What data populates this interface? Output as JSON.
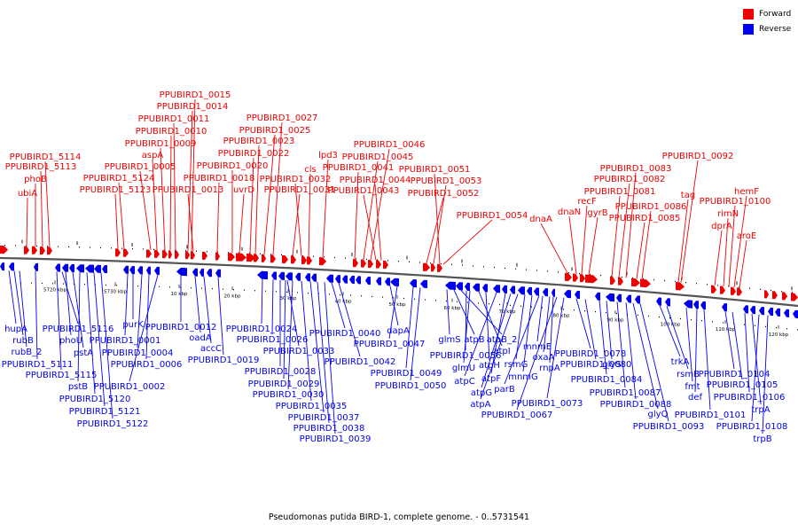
{
  "legend": {
    "forward_label": "Forward",
    "reverse_label": "Reverse",
    "forward_color": "#ee0000",
    "reverse_color": "#0000ee"
  },
  "caption": "Pseudomonas putida BIRD-1, complete genome. - 0..5731541",
  "scale_labels": [
    "5720 kbp",
    "5730 kbp",
    "10 kbp",
    "20 kbp",
    "30 kbp",
    "40 kbp",
    "50 kbp",
    "60 kbp",
    "70 kbp",
    "80 kbp",
    "90 kbp",
    "100 kbp",
    "110 kbp",
    "120 kbp"
  ],
  "forward_genes": [
    "ubiA",
    "phoB",
    "PPUBIRD1_5113",
    "PPUBIRD1_5114",
    "PPUBIRD1_5123",
    "PPUBIRD1_5124",
    "PPUBIRD1_0005",
    "aspA",
    "PPUBIRD1_0009",
    "PPUBIRD1_0010",
    "PPUBIRD1_0011",
    "PPUBIRD1_0014",
    "PPUBIRD1_0015",
    "PPUBIRD1_0013",
    "PPUBIRD1_0018",
    "PPUBIRD1_0020",
    "uvrD",
    "PPUBIRD1_0022",
    "PPUBIRD1_0023",
    "PPUBIRD1_0025",
    "PPUBIRD1_0027",
    "PPUBIRD1_0031",
    "PPUBIRD1_0032",
    "cls",
    "lpd3",
    "PPUBIRD1_0041",
    "PPUBIRD1_0045",
    "PPUBIRD1_0046",
    "PPUBIRD1_0043",
    "PPUBIRD1_0044",
    "PPUBIRD1_0052",
    "PPUBIRD1_0053",
    "PPUBIRD1_0051",
    "PPUBIRD1_0054",
    "dnaA",
    "dnaN",
    "recF",
    "gyrB",
    "PPUBIRD1_0081",
    "PPUBIRD1_0082",
    "PPUBIRD1_0083",
    "PPUBIRD1_0085",
    "PPUBIRD1_0086",
    "tag",
    "PPUBIRD1_0092",
    "dprA",
    "rimN",
    "PPUBIRD1_0100",
    "hemF",
    "aroE"
  ],
  "reverse_genes": [
    "hupA",
    "rubB",
    "rubB_2",
    "PPUBIRD1_5111",
    "PPUBIRD1_5115",
    "PPUBIRD1_5116",
    "phoU",
    "pstA",
    "pstB",
    "PPUBIRD1_5120",
    "PPUBIRD1_5121",
    "PPUBIRD1_5122",
    "PPUBIRD1_0001",
    "purK",
    "PPUBIRD1_0004",
    "PPUBIRD1_0006",
    "PPUBIRD1_0002",
    "PPUBIRD1_0012",
    "oadA",
    "accC",
    "PPUBIRD1_0019",
    "PPUBIRD1_0024",
    "PPUBIRD1_0026",
    "PPUBIRD1_0033",
    "PPUBIRD1_0028",
    "PPUBIRD1_0029",
    "PPUBIRD1_0030",
    "PPUBIRD1_0035",
    "PPUBIRD1_0037",
    "PPUBIRD1_0038",
    "PPUBIRD1_0039",
    "PPUBIRD1_0040",
    "PPUBIRD1_0042",
    "dapA",
    "PPUBIRD1_0047",
    "PPUBIRD1_0049",
    "PPUBIRD1_0050",
    "glmS",
    "atpB",
    "atpB_2",
    "PPUBIRD1_0056",
    "atpI",
    "glmU",
    "atpH",
    "atpC",
    "atpF",
    "atpG",
    "atpA",
    "rsmG",
    "mnmG",
    "parB",
    "mnmE",
    "oxaA",
    "rnpA",
    "PPUBIRD1_0067",
    "PPUBIRD1_0073",
    "PPUBIRD1_0078",
    "PPUBIRD1_0080",
    "PPUBIRD1_0084",
    "glyS",
    "PPUBIRD1_0087",
    "PPUBIRD1_0088",
    "glyQ",
    "PPUBIRD1_0093",
    "trkA",
    "rsmB",
    "fmt",
    "def",
    "PPUBIRD1_0101",
    "PPUBIRD1_0104",
    "PPUBIRD1_0105",
    "PPUBIRD1_0106",
    "trpA",
    "PPUBIRD1_0108",
    "trpB"
  ]
}
